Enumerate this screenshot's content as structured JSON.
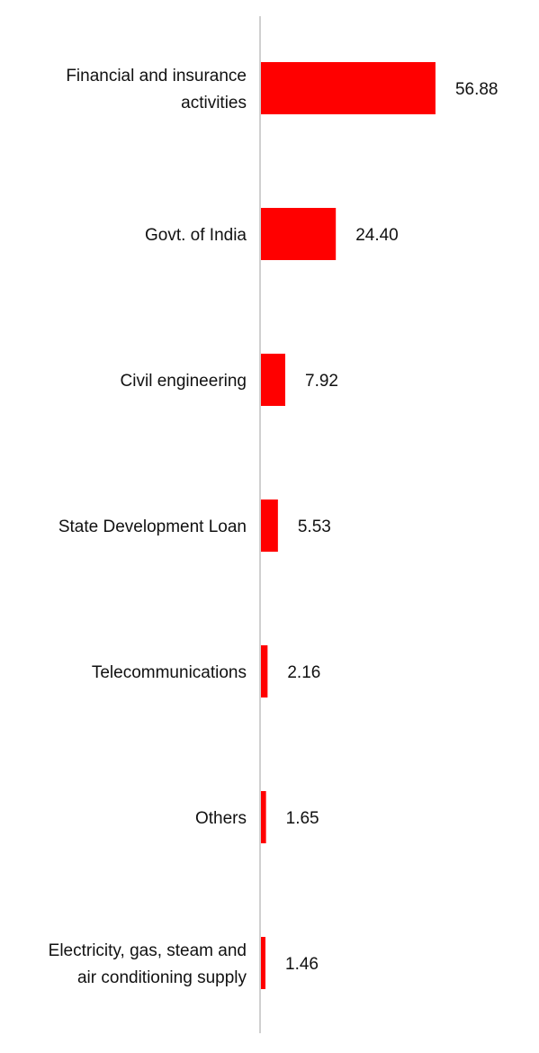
{
  "chart_data": {
    "type": "bar",
    "orientation": "horizontal",
    "categories": [
      [
        "Financial and insurance",
        "activities"
      ],
      [
        "Govt. of India"
      ],
      [
        "Civil engineering"
      ],
      [
        "State Development Loan"
      ],
      [
        "Telecommunications"
      ],
      [
        "Others"
      ],
      [
        "Electricity, gas, steam and",
        "air conditioning supply"
      ]
    ],
    "values": [
      56.88,
      24.4,
      7.92,
      5.53,
      2.16,
      1.65,
      1.46
    ],
    "value_labels": [
      "56.88",
      "24.40",
      "7.92",
      "5.53",
      "2.16",
      "1.65",
      "1.46"
    ],
    "title": "",
    "xlabel": "",
    "ylabel": "",
    "xlim": [
      0,
      100
    ],
    "grid": false,
    "legend": "none",
    "colors": {
      "bar": "#ff0000",
      "axis": "#d0d0d0",
      "text": "#111111"
    }
  }
}
